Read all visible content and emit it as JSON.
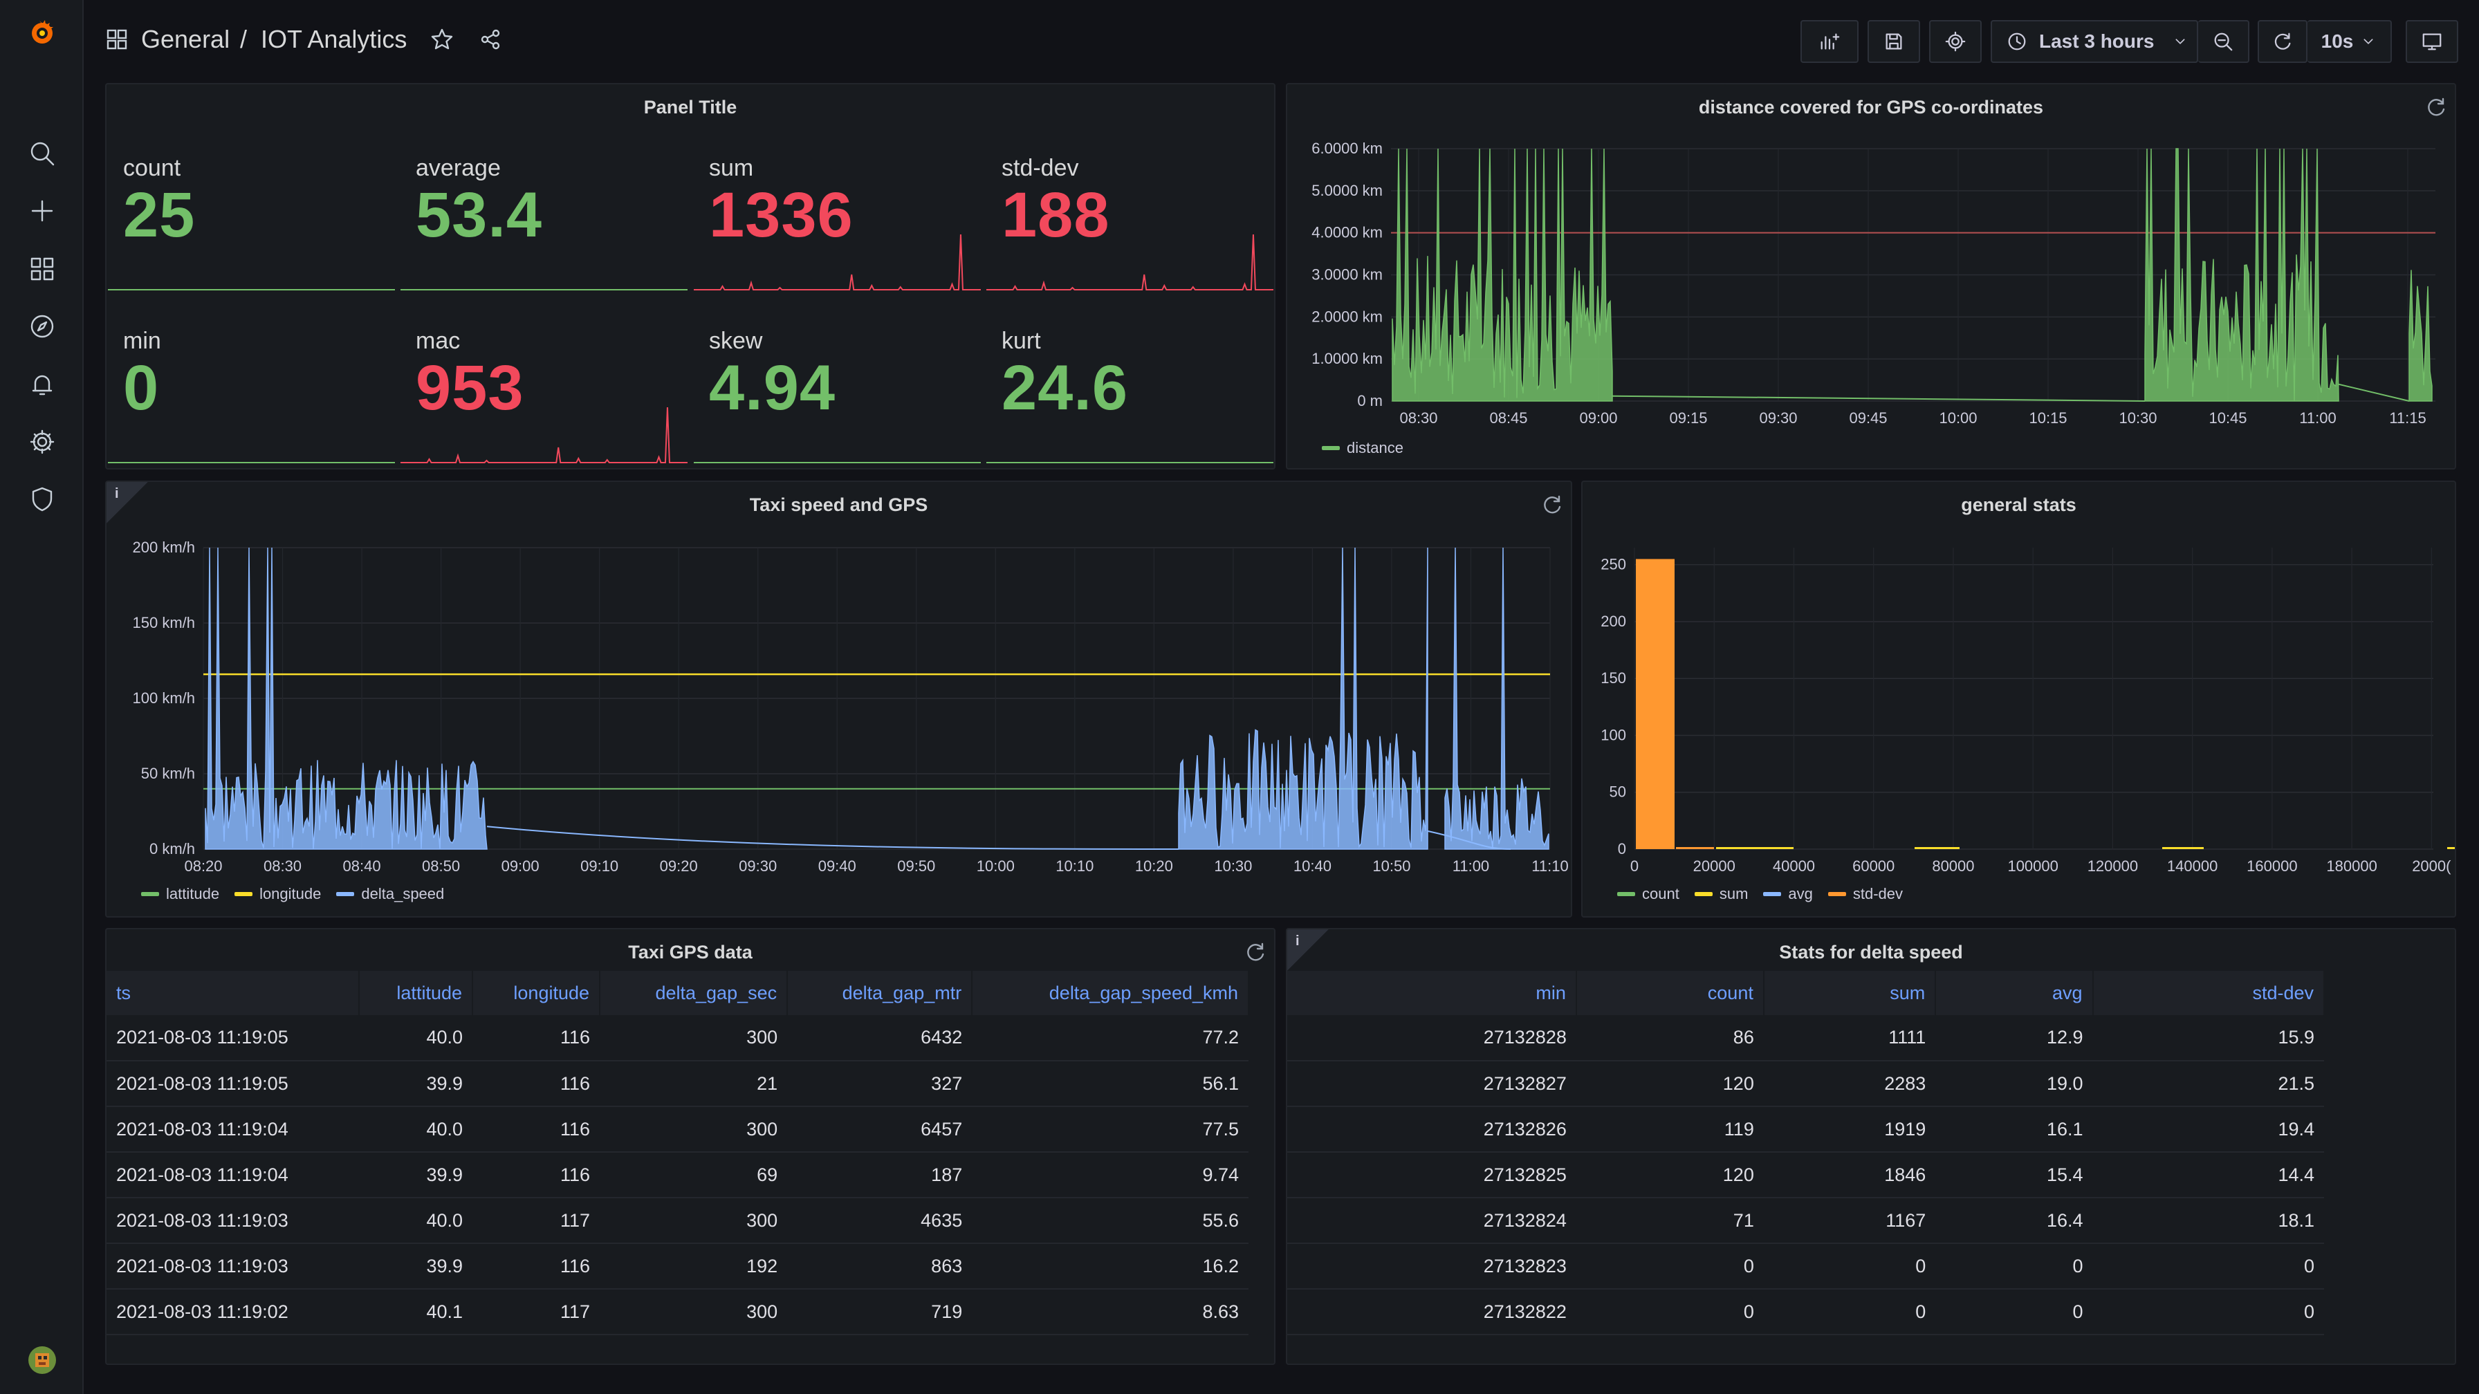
{
  "breadcrumb": {
    "folder": "General",
    "separator": "/",
    "dashboard": "IOT Analytics"
  },
  "toolbar": {
    "time_range": "Last 3 hours",
    "refresh_interval": "10s"
  },
  "panels": {
    "stats": {
      "title": "Panel Title",
      "items": [
        {
          "label": "count",
          "value": "25",
          "color": "#73bf69"
        },
        {
          "label": "average",
          "value": "53.4",
          "color": "#73bf69"
        },
        {
          "label": "sum",
          "value": "1336",
          "color": "#f2495c"
        },
        {
          "label": "std-dev",
          "value": "188",
          "color": "#f2495c"
        },
        {
          "label": "min",
          "value": "0",
          "color": "#73bf69"
        },
        {
          "label": "mac",
          "value": "953",
          "color": "#f2495c"
        },
        {
          "label": "skew",
          "value": "4.94",
          "color": "#73bf69"
        },
        {
          "label": "kurt",
          "value": "24.6",
          "color": "#73bf69"
        }
      ]
    },
    "distance": {
      "title": "distance covered for GPS co-ordinates",
      "legend": [
        "distance"
      ]
    },
    "taxi": {
      "title": "Taxi speed and GPS",
      "legend": [
        "lattitude",
        "longitude",
        "delta_speed"
      ]
    },
    "general": {
      "title": "general stats",
      "legend": [
        "count",
        "sum",
        "avg",
        "std-dev"
      ]
    },
    "gps_table": {
      "title": "Taxi GPS data",
      "columns": [
        "ts",
        "lattitude",
        "longitude",
        "delta_gap_sec",
        "delta_gap_mtr",
        "delta_gap_speed_kmh"
      ],
      "rows": [
        [
          "2021-08-03 11:19:05",
          "40.0",
          "116",
          "300",
          "6432",
          "77.2"
        ],
        [
          "2021-08-03 11:19:05",
          "39.9",
          "116",
          "21",
          "327",
          "56.1"
        ],
        [
          "2021-08-03 11:19:04",
          "40.0",
          "116",
          "300",
          "6457",
          "77.5"
        ],
        [
          "2021-08-03 11:19:04",
          "39.9",
          "116",
          "69",
          "187",
          "9.74"
        ],
        [
          "2021-08-03 11:19:03",
          "40.0",
          "117",
          "300",
          "4635",
          "55.6"
        ],
        [
          "2021-08-03 11:19:03",
          "39.9",
          "116",
          "192",
          "863",
          "16.2"
        ],
        [
          "2021-08-03 11:19:02",
          "40.1",
          "117",
          "300",
          "719",
          "8.63"
        ]
      ]
    },
    "delta_table": {
      "title": "Stats for delta speed",
      "columns": [
        "min",
        "count",
        "sum",
        "avg",
        "std-dev"
      ],
      "rows": [
        [
          "27132828",
          "86",
          "1111",
          "12.9",
          "15.9"
        ],
        [
          "27132827",
          "120",
          "2283",
          "19.0",
          "21.5"
        ],
        [
          "27132826",
          "119",
          "1919",
          "16.1",
          "19.4"
        ],
        [
          "27132825",
          "120",
          "1846",
          "15.4",
          "14.4"
        ],
        [
          "27132824",
          "71",
          "1167",
          "16.4",
          "18.1"
        ],
        [
          "27132823",
          "0",
          "0",
          "0",
          "0"
        ],
        [
          "27132822",
          "0",
          "0",
          "0",
          "0"
        ]
      ]
    }
  },
  "chart_data": [
    {
      "type": "line",
      "title": "distance covered for GPS co-ordinates",
      "x": [
        "08:30",
        "08:45",
        "09:00",
        "09:15",
        "09:30",
        "09:45",
        "10:00",
        "10:15",
        "10:30",
        "10:45",
        "11:00",
        "11:15"
      ],
      "y_ticks": [
        "0 m",
        "1.0000 km",
        "2.0000 km",
        "3.0000 km",
        "4.0000 km",
        "5.0000 km",
        "6.0000 km"
      ],
      "series": [
        {
          "name": "distance",
          "color": "#73bf69"
        }
      ],
      "threshold_km": 4.0
    },
    {
      "type": "line",
      "title": "Taxi speed and GPS",
      "x": [
        "08:20",
        "08:30",
        "08:40",
        "08:50",
        "09:00",
        "09:10",
        "09:20",
        "09:30",
        "09:40",
        "09:50",
        "10:00",
        "10:10",
        "10:20",
        "10:30",
        "10:40",
        "10:50",
        "11:00",
        "11:10"
      ],
      "y_ticks": [
        "0 km/h",
        "50 km/h",
        "100 km/h",
        "150 km/h",
        "200 km/h"
      ],
      "series": [
        {
          "name": "lattitude",
          "color": "#73bf69",
          "value": 40
        },
        {
          "name": "longitude",
          "color": "#fade2a",
          "value": 116
        },
        {
          "name": "delta_speed",
          "color": "#8ab8ff"
        }
      ]
    },
    {
      "type": "bar",
      "title": "general stats",
      "x": [
        "0",
        "20000",
        "40000",
        "60000",
        "80000",
        "100000",
        "120000",
        "140000",
        "160000",
        "180000",
        "2000("
      ],
      "y_ticks": [
        "0",
        "50",
        "100",
        "150",
        "200",
        "250"
      ],
      "series": [
        {
          "name": "count",
          "color": "#73bf69"
        },
        {
          "name": "sum",
          "color": "#fade2a"
        },
        {
          "name": "avg",
          "color": "#8ab8ff"
        },
        {
          "name": "std-dev",
          "color": "#ff9830"
        }
      ],
      "bars": [
        {
          "series": "std-dev",
          "x": 0,
          "value": 255
        }
      ]
    }
  ]
}
